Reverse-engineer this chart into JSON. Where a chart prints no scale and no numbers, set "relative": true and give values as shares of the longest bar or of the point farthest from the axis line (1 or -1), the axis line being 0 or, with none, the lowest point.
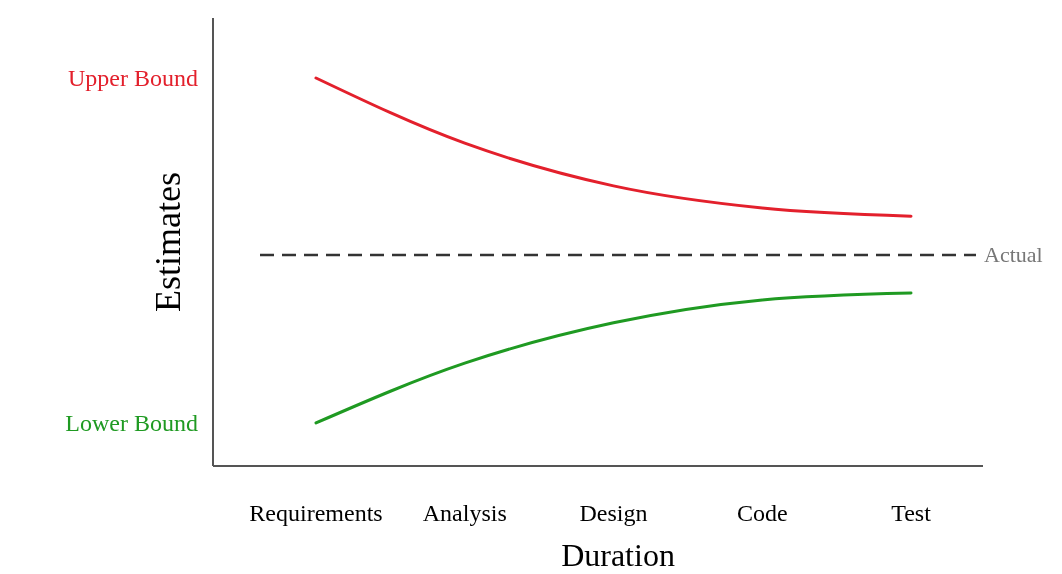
{
  "chart_data": {
    "type": "line",
    "relative": true,
    "xlabel": "Duration",
    "ylabel": "Estimates",
    "categories": [
      "Requirements",
      "Analysis",
      "Design",
      "Code",
      "Test"
    ],
    "series": [
      {
        "name": "Upper Bound",
        "color": "#e3202c",
        "values": [
          1,
          0.832,
          0.722,
          0.665,
          0.644
        ]
      },
      {
        "name": "Lower Bound",
        "color": "#1f9a22",
        "values": [
          0.111,
          0.265,
          0.369,
          0.428,
          0.446
        ]
      }
    ],
    "ref_lines": [
      {
        "axis": "y",
        "value": 0.544,
        "label": "Actual",
        "color": "#333333",
        "line_style": "dashed"
      }
    ],
    "grid": false,
    "legend": false,
    "marker": "none",
    "line_style": "solid"
  }
}
